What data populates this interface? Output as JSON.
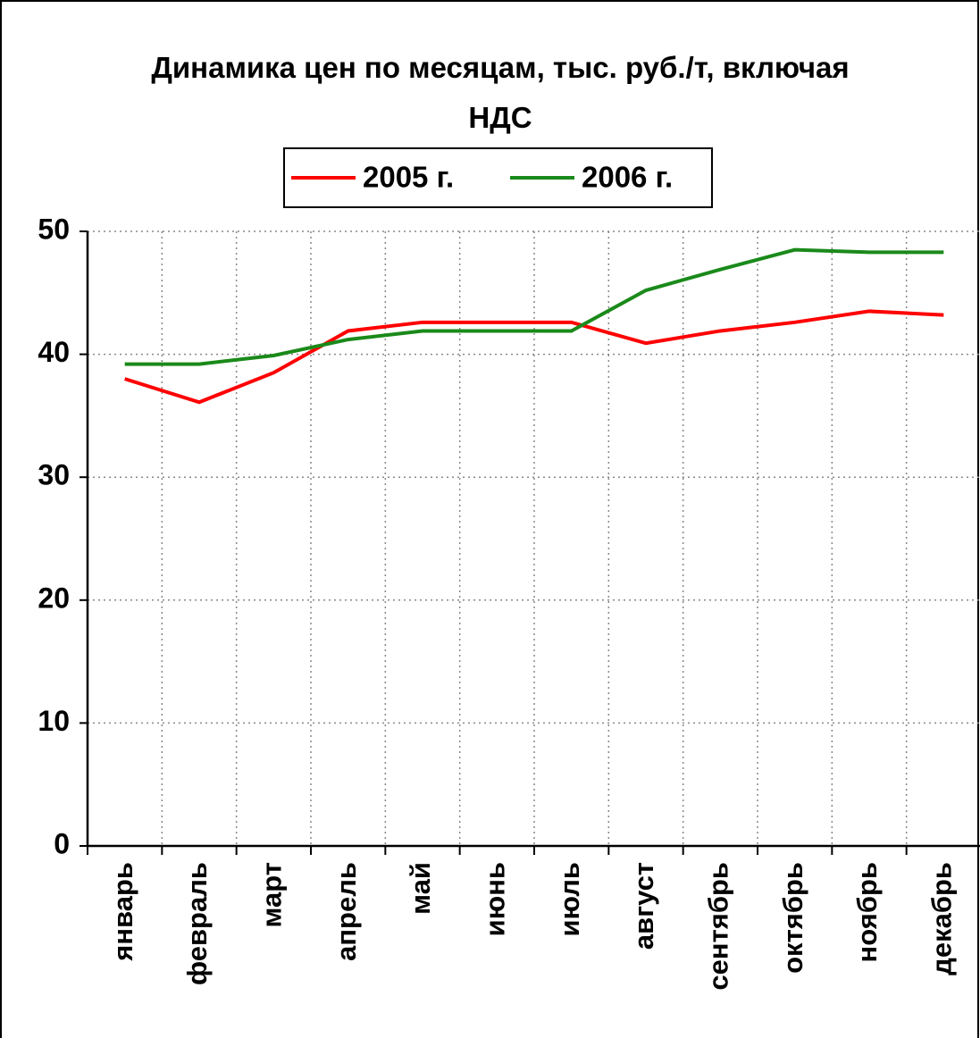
{
  "chart_data": {
    "type": "line",
    "title": "Динамика цен по месяцам, тыс. руб./т, включая НДС",
    "categories": [
      "январь",
      "февраль",
      "март",
      "апрель",
      "май",
      "июнь",
      "июль",
      "август",
      "сентябрь",
      "октябрь",
      "ноябрь",
      "декабрь"
    ],
    "series": [
      {
        "name": "2005 г.",
        "color": "#ff0000",
        "values": [
          38.0,
          36.1,
          38.5,
          41.9,
          42.6,
          42.6,
          42.6,
          40.9,
          41.9,
          42.6,
          43.5,
          43.2
        ]
      },
      {
        "name": "2006 г.",
        "color": "#1a8a1a",
        "values": [
          39.2,
          39.2,
          39.9,
          41.2,
          41.9,
          41.9,
          41.9,
          45.2,
          46.9,
          48.5,
          48.3,
          48.3
        ]
      }
    ],
    "ylim": [
      0,
      50
    ],
    "yticks": [
      0,
      10,
      20,
      30,
      40,
      50
    ],
    "grid": true,
    "legend": "top"
  }
}
